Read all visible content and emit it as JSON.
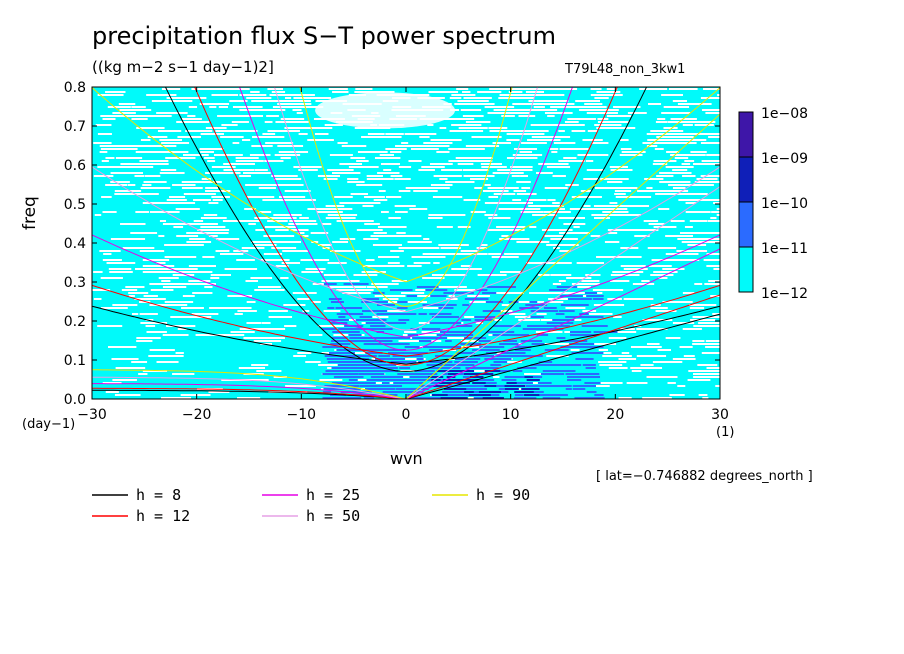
{
  "chart_data": {
    "type": "heatmap",
    "title": "precipitation flux S−T power spectrum",
    "units": "((kg m−2 s−1 day−1)2]",
    "run_label": "T79L48_non_3kw1",
    "xlabel": "wvn",
    "ylabel": "freq",
    "x_unit": "(1)",
    "y_unit": "(day−1)",
    "location": "[ lat=−0.746882 degrees_north ]",
    "xlim": [
      -30,
      30
    ],
    "ylim": [
      0,
      0.8
    ],
    "x_ticks": [
      -30,
      -20,
      -10,
      0,
      10,
      20,
      30
    ],
    "x_tick_labels": [
      "−30",
      "−20",
      "−10",
      "0",
      "10",
      "20",
      "30"
    ],
    "y_ticks": [
      0,
      0.1,
      0.2,
      0.3,
      0.4,
      0.5,
      0.6,
      0.7,
      0.8
    ],
    "y_tick_labels": [
      "0.0",
      "0.1",
      "0.2",
      "0.3",
      "0.4",
      "0.5",
      "0.6",
      "0.7",
      "0.8"
    ],
    "colorbar": {
      "labels": [
        "1e−08",
        "1e−09",
        "1e−10",
        "1e−11",
        "1e−12"
      ],
      "colors": [
        "#3e16a8",
        "#0f1fb8",
        "#2b6bff",
        "#00fafa"
      ]
    },
    "background_color": "#00fafa",
    "dispersion_curves": [
      {
        "h": 8,
        "label": "h =  8",
        "color": "#000000"
      },
      {
        "h": 12,
        "label": "h = 12",
        "color": "#ff0000"
      },
      {
        "h": 25,
        "label": "h = 25",
        "color": "#e600e6"
      },
      {
        "h": 50,
        "label": "h = 50",
        "color": "#e6a0e6"
      },
      {
        "h": 90,
        "label": "h = 90",
        "color": "#e6e600"
      }
    ]
  }
}
